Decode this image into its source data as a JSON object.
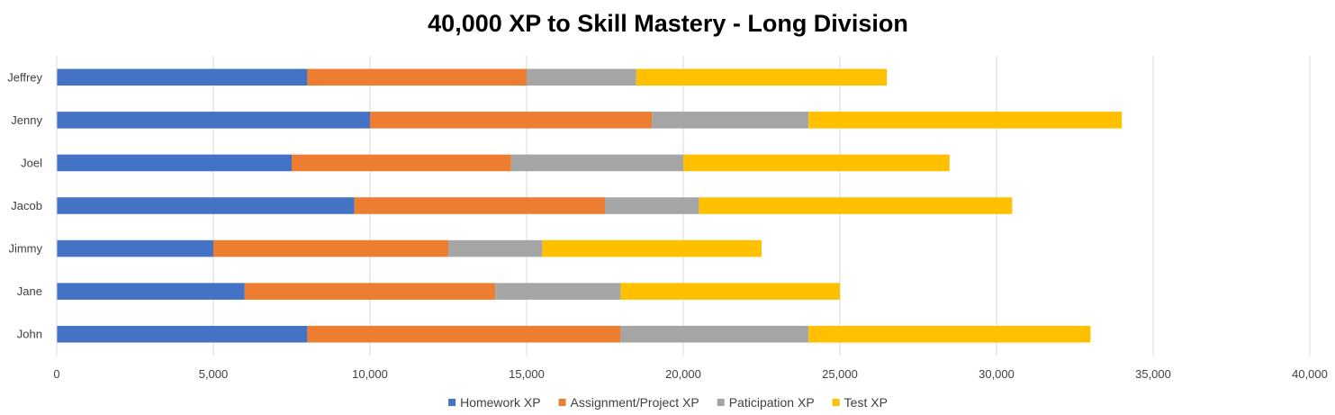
{
  "chart_data": {
    "type": "bar",
    "orientation": "horizontal",
    "stacked": true,
    "title": "40,000 XP to Skill Mastery - Long Division",
    "xlabel": "",
    "ylabel": "",
    "xlim": [
      0,
      40000
    ],
    "x_ticks": [
      0,
      5000,
      10000,
      15000,
      20000,
      25000,
      30000,
      35000,
      40000
    ],
    "x_tick_labels": [
      "0",
      "5,000",
      "10,000",
      "15,000",
      "20,000",
      "25,000",
      "30,000",
      "35,000",
      "40,000"
    ],
    "grid": "vertical",
    "legend_position": "bottom",
    "categories": [
      "Jeffrey",
      "Jenny",
      "Joel",
      "Jacob",
      "Jimmy",
      "Jane",
      "John"
    ],
    "series": [
      {
        "name": "Homework XP",
        "color": "#4472C4",
        "values": [
          8000,
          10000,
          7500,
          9500,
          5000,
          6000,
          8000
        ]
      },
      {
        "name": "Assignment/Project XP",
        "color": "#ED7D31",
        "values": [
          7000,
          9000,
          7000,
          8000,
          7500,
          8000,
          10000
        ]
      },
      {
        "name": "Paticipation XP",
        "color": "#A5A5A5",
        "values": [
          3500,
          5000,
          5500,
          3000,
          3000,
          4000,
          6000
        ]
      },
      {
        "name": "Test XP",
        "color": "#FFC000",
        "values": [
          8000,
          10000,
          8500,
          10000,
          7000,
          7000,
          9000
        ]
      }
    ]
  }
}
